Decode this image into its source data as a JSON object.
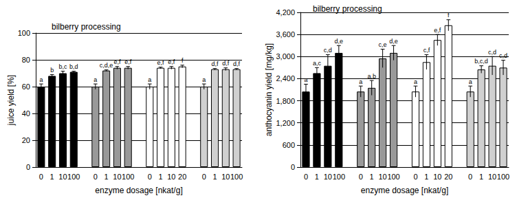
{
  "chart_data": [
    {
      "type": "bar",
      "title": "bilberry processing",
      "x_label": "enzyme dosage [nkat/g]",
      "y_label": "juice yield [%]",
      "categories": [
        "0",
        "1",
        "10",
        "100",
        null,
        "0",
        "1",
        "10",
        "100",
        null,
        "0",
        "1",
        "10",
        "20",
        null,
        "0",
        "1",
        "10",
        "100"
      ],
      "values": [
        60,
        68,
        70,
        71,
        null,
        60,
        72,
        74,
        74,
        null,
        60,
        74,
        74,
        75,
        null,
        60,
        73,
        73,
        73
      ],
      "errors": [
        2,
        1,
        1.5,
        0.5,
        null,
        2,
        0.5,
        1,
        1,
        null,
        2,
        0.5,
        1,
        1,
        null,
        2,
        0.5,
        1,
        0.5
      ],
      "letters": [
        "a",
        "b",
        "b,c",
        "b,d",
        null,
        "a",
        "c,d,e",
        "e,f",
        "e,f",
        null,
        "a",
        "e,f",
        "e,f",
        "f",
        null,
        "a",
        "d,f",
        "d,f",
        "d,f"
      ],
      "colors": [
        "#000000",
        "#000000",
        "#000000",
        "#000000",
        null,
        "#999999",
        "#999999",
        "#999999",
        "#999999",
        null,
        "#ffffff",
        "#ffffff",
        "#ffffff",
        "#ffffff",
        null,
        "#d0d0d0",
        "#d0d0d0",
        "#d0d0d0",
        "#d0d0d0"
      ],
      "ylim": [
        0,
        100
      ],
      "yticks": [
        0,
        20,
        40,
        60,
        80,
        100
      ],
      "grid": true
    },
    {
      "type": "bar",
      "title": "bilberry processing",
      "x_label": "enzyme dosage [nkat/g]",
      "y_label": "anthocyanin yield [mg/kg]",
      "categories": [
        "0",
        "1",
        "10",
        "100",
        null,
        "0",
        "1",
        "10",
        "100",
        null,
        "0",
        "1",
        "10",
        "20",
        null,
        "0",
        "1",
        "10",
        "100"
      ],
      "values": [
        2050,
        2550,
        2750,
        3100,
        null,
        2050,
        2150,
        2950,
        3100,
        null,
        2050,
        2850,
        3450,
        3850,
        null,
        2050,
        2650,
        2750,
        2700
      ],
      "errors": [
        200,
        150,
        300,
        200,
        null,
        150,
        200,
        250,
        200,
        null,
        150,
        200,
        150,
        150,
        null,
        150,
        100,
        250,
        200
      ],
      "letters": [
        "a",
        "a,c",
        "c,d",
        "d,e",
        null,
        "a",
        "a,b",
        "c,e",
        "d,e",
        null,
        "a",
        "c,f",
        "e,f",
        "f",
        null,
        "a",
        "b,c,d",
        "c,d",
        "c,d"
      ],
      "colors": [
        "#000000",
        "#000000",
        "#000000",
        "#000000",
        null,
        "#999999",
        "#999999",
        "#999999",
        "#999999",
        null,
        "#ffffff",
        "#ffffff",
        "#ffffff",
        "#ffffff",
        null,
        "#d0d0d0",
        "#d0d0d0",
        "#d0d0d0",
        "#d0d0d0"
      ],
      "ylim": [
        0,
        4200
      ],
      "yticks": [
        0,
        600,
        1200,
        1800,
        2400,
        3000,
        3600,
        4200
      ],
      "grid": true
    }
  ]
}
